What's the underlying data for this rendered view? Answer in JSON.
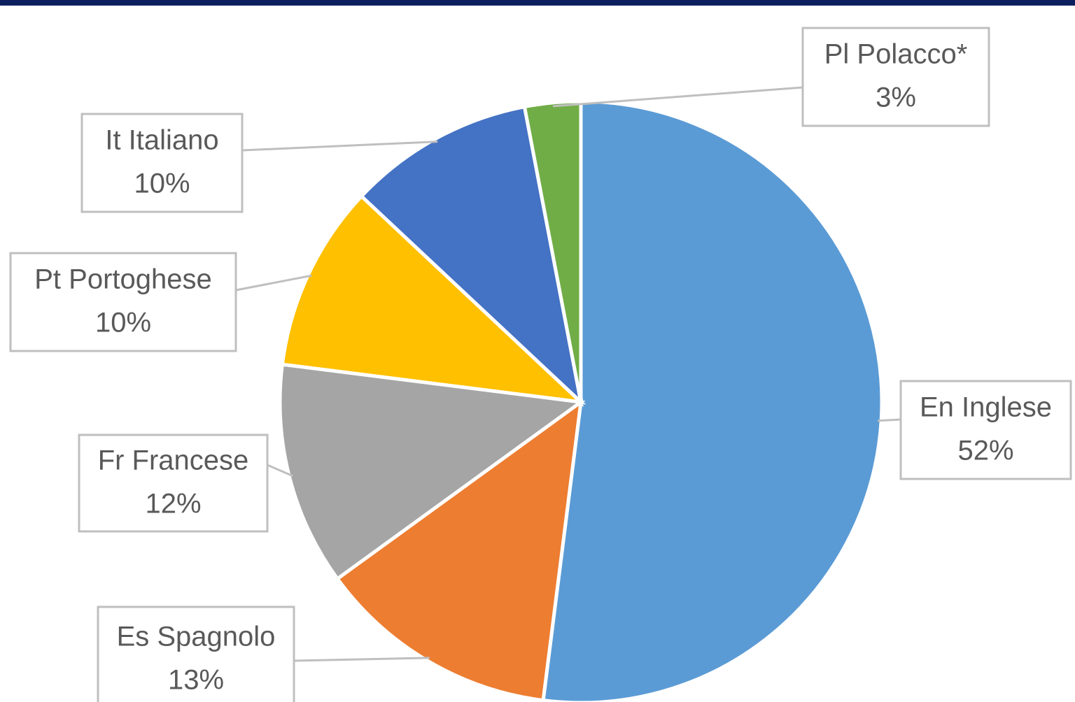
{
  "chart_data": {
    "type": "pie",
    "categories": [
      "En Inglese",
      "Es Spagnolo",
      "Fr Francese",
      "Pt Portoghese",
      "It Italiano",
      "Pl Polacco*"
    ],
    "values": [
      52,
      13,
      12,
      10,
      10,
      3
    ],
    "value_labels": [
      "52%",
      "13%",
      "12%",
      "10%",
      "10%",
      "3%"
    ],
    "colors": [
      "#5b9bd5",
      "#ed7d31",
      "#a5a5a5",
      "#ffc000",
      "#4472c4",
      "#70ad47"
    ]
  }
}
